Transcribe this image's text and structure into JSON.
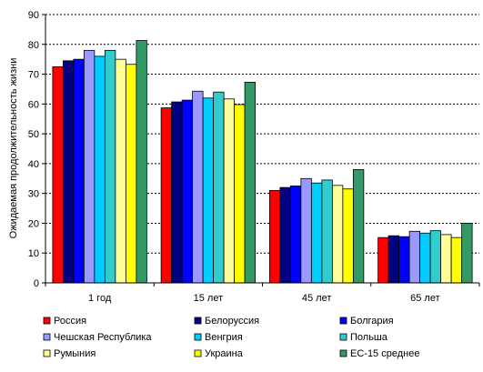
{
  "chart_data": {
    "type": "bar",
    "title": "",
    "xlabel": "",
    "ylabel": "Ожидаемая продолжительность жизни",
    "ylim": [
      0,
      90
    ],
    "yticks": [
      0,
      10,
      20,
      30,
      40,
      50,
      60,
      70,
      80,
      90
    ],
    "grid": true,
    "legend_position": "bottom",
    "categories": [
      "1 год",
      "15 лет",
      "45 лет",
      "65 лет"
    ],
    "series": [
      {
        "name": "Россия",
        "color": "#ff0000",
        "values": [
          72.5,
          58.7,
          31.0,
          15.2
        ]
      },
      {
        "name": "Белоруссия",
        "color": "#000080",
        "values": [
          74.5,
          60.7,
          32.0,
          15.8
        ]
      },
      {
        "name": "Болгария",
        "color": "#0000ff",
        "values": [
          75.0,
          61.3,
          32.5,
          15.5
        ]
      },
      {
        "name": "Чешская Республика",
        "color": "#9999ff",
        "values": [
          78.0,
          64.3,
          35.0,
          17.3
        ]
      },
      {
        "name": "Венгрия",
        "color": "#00ccff",
        "values": [
          76.0,
          62.0,
          33.5,
          16.7
        ]
      },
      {
        "name": "Польша",
        "color": "#33cccc",
        "values": [
          78.0,
          64.0,
          34.5,
          17.5
        ]
      },
      {
        "name": "Румыния",
        "color": "#ffff99",
        "values": [
          75.0,
          61.7,
          32.7,
          16.2
        ]
      },
      {
        "name": "Украина",
        "color": "#ffff00",
        "values": [
          73.3,
          59.8,
          31.5,
          15.2
        ]
      },
      {
        "name": "ЕС-15 среднее",
        "color": "#339966",
        "values": [
          81.3,
          67.3,
          38.0,
          20.0
        ]
      }
    ]
  }
}
